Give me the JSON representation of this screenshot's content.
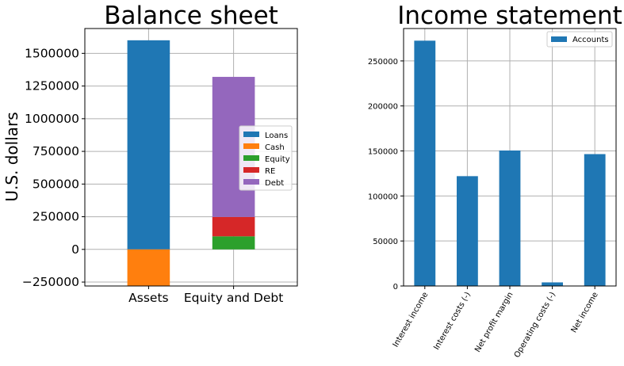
{
  "chart_data": [
    {
      "type": "bar",
      "stacked": true,
      "title": "Balance sheet",
      "xlabel": "",
      "ylabel": "U.S. dollars",
      "categories": [
        "Assets",
        "Equity and Debt"
      ],
      "ylim": [
        -280000,
        1690000
      ],
      "yticks": [
        -250000,
        0,
        250000,
        500000,
        750000,
        1000000,
        1250000,
        1500000
      ],
      "ytick_labels": [
        "−250000",
        "0",
        "250000",
        "500000",
        "750000",
        "1000000",
        "1250000",
        "1500000"
      ],
      "grid": true,
      "legend_position": "center-right",
      "series": [
        {
          "name": "Loans",
          "color": "#1f77b4",
          "values": [
            1600000,
            0
          ]
        },
        {
          "name": "Cash",
          "color": "#ff7f0e",
          "values": [
            -285000,
            0
          ]
        },
        {
          "name": "Equity",
          "color": "#2ca02c",
          "values": [
            0,
            100000
          ]
        },
        {
          "name": "RE",
          "color": "#d62728",
          "values": [
            0,
            148000
          ]
        },
        {
          "name": "Debt",
          "color": "#9467bd",
          "values": [
            0,
            1072000
          ]
        }
      ]
    },
    {
      "type": "bar",
      "title": "Income statement",
      "xlabel": "",
      "ylabel": "",
      "categories": [
        "Interest income",
        "Interest costs (-)",
        "Net profit margin",
        "Operating costs (-)",
        "Net income"
      ],
      "ylim": [
        0,
        286000
      ],
      "yticks": [
        0,
        50000,
        100000,
        150000,
        200000,
        250000
      ],
      "ytick_labels": [
        "0",
        "50000",
        "100000",
        "150000",
        "200000",
        "250000"
      ],
      "grid": true,
      "legend_position": "top-right",
      "series": [
        {
          "name": "Accounts",
          "color": "#1f77b4",
          "values": [
            272500,
            122000,
            150500,
            4000,
            146500
          ]
        }
      ]
    }
  ]
}
